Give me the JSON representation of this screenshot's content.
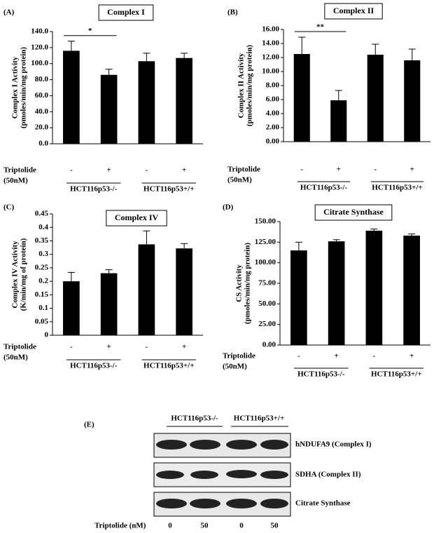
{
  "chart_data": [
    {
      "type": "bar",
      "panel": "(A)",
      "title": "Complex I",
      "ylabel": [
        "Complex I Activity",
        "(pmoles/min/mg protein)"
      ],
      "categories": [
        "-",
        "+",
        "-",
        "+"
      ],
      "values": [
        116,
        86,
        103,
        107
      ],
      "errors": [
        12,
        7,
        10,
        6
      ],
      "color": "#000000",
      "ylim": [
        0,
        140
      ],
      "yticks": [
        {
          "value": 0,
          "label": "0.0"
        },
        {
          "value": 20,
          "label": "20.0"
        },
        {
          "value": 40,
          "label": "40.0"
        },
        {
          "value": 60,
          "label": "60.0"
        },
        {
          "value": 80,
          "label": "80.0"
        },
        {
          "value": 100,
          "label": "100.0"
        },
        {
          "value": 120,
          "label": "120.0"
        },
        {
          "value": 140,
          "label": "140.0"
        }
      ],
      "significance": "*",
      "row_label": [
        "Triptolide",
        "(50nM)"
      ],
      "groups": [
        "HCT116p53-/-",
        "HCT116p53+/+"
      ]
    },
    {
      "type": "bar",
      "panel": "(B)",
      "title": "Complex II",
      "ylabel": [
        "Complex II Activity",
        "(pmoles/min/mg protein)"
      ],
      "categories": [
        "-",
        "+",
        "-",
        "+"
      ],
      "values": [
        12.5,
        5.9,
        12.4,
        11.6
      ],
      "errors": [
        2.4,
        1.4,
        1.5,
        1.6
      ],
      "color": "#000000",
      "ylim": [
        0,
        16
      ],
      "yticks": [
        {
          "value": 0,
          "label": "0.00"
        },
        {
          "value": 2,
          "label": "2.00"
        },
        {
          "value": 4,
          "label": "4.00"
        },
        {
          "value": 6,
          "label": "6.00"
        },
        {
          "value": 8,
          "label": "8.00"
        },
        {
          "value": 10,
          "label": "10.00"
        },
        {
          "value": 12,
          "label": "12.00"
        },
        {
          "value": 14,
          "label": "14.00"
        },
        {
          "value": 16,
          "label": "16.00"
        }
      ],
      "significance": "**",
      "row_label": [
        "Triptolide",
        "(50nM)"
      ],
      "groups": [
        "HCT116p53-/-",
        "HCT116p53+/+"
      ]
    },
    {
      "type": "bar",
      "panel": "(C)",
      "title": "Complex IV",
      "ylabel": [
        "Complex IV Activity",
        "(K/min/mg of protein)"
      ],
      "categories": [
        "-",
        "+",
        "-",
        "+"
      ],
      "values": [
        0.2,
        0.23,
        0.337,
        0.322
      ],
      "errors": [
        0.033,
        0.013,
        0.05,
        0.018
      ],
      "color": "#000000",
      "ylim": [
        0,
        0.45
      ],
      "yticks": [
        0,
        0.05,
        0.1,
        0.15,
        0.2,
        0.25,
        0.3,
        0.35,
        0.4,
        0.45
      ],
      "row_label": [
        "Triptolide",
        "(50nM)"
      ],
      "groups": [
        "HCT116p53-/-",
        "HCT116p53+/+"
      ]
    },
    {
      "type": "bar",
      "panel": "(D)",
      "title": "Citrate Synthase",
      "ylabel": [
        "CS Activity",
        "(pmoles/min/mg protein)"
      ],
      "categories": [
        "-",
        "+",
        "-",
        "+"
      ],
      "values": [
        115,
        126,
        139,
        133
      ],
      "errors": [
        10,
        2,
        2,
        2
      ],
      "color": "#000000",
      "ylim": [
        0,
        150
      ],
      "yticks": [
        {
          "value": 0,
          "label": "0.00"
        },
        {
          "value": 25,
          "label": "25.00"
        },
        {
          "value": 50,
          "label": "50.00"
        },
        {
          "value": 75,
          "label": "75.00"
        },
        {
          "value": 100,
          "label": "100.00"
        },
        {
          "value": 125,
          "label": "125.00"
        },
        {
          "value": 150,
          "label": "150.00"
        }
      ],
      "row_label": [
        "Triptolide",
        "(50nM)"
      ],
      "groups": [
        "HCT116p53-/-",
        "HCT116p53+/+"
      ]
    }
  ],
  "blot": {
    "panel": "(E)",
    "groups": [
      "HCT116p53-/-",
      "HCT116p53+/+"
    ],
    "bands": [
      "hNDUFA9 (Complex I)",
      "SDHA (Complex II)",
      "Citrate Synthase"
    ],
    "row_label": "Triptolide (nM)",
    "lanes": [
      0,
      50,
      0,
      50
    ]
  }
}
